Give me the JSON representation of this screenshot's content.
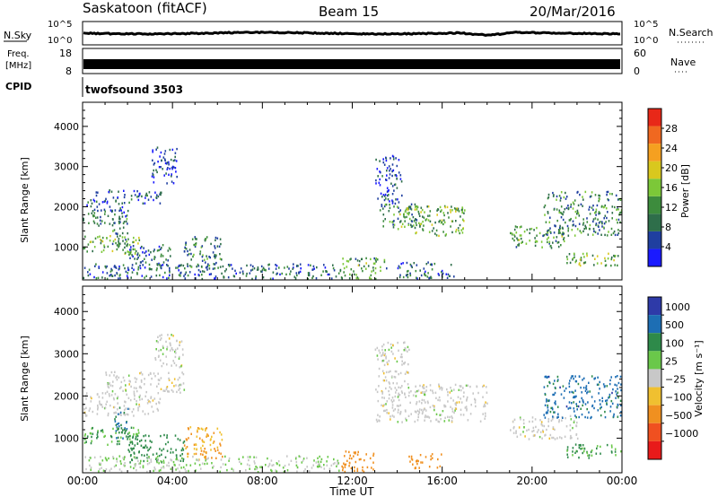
{
  "header": {
    "station": "Saskatoon (fitACF)",
    "beam": "Beam 15",
    "date": "20/Mar/2016"
  },
  "summary": {
    "nsky_label": "N.Sky",
    "nsky_ticks": [
      "10^5",
      "10^0"
    ],
    "nsearch_label": "N.Search",
    "freq_label_1": "Freq.",
    "freq_label_2": "[MHz]",
    "freq_ticks": [
      "18",
      "8"
    ],
    "nave_label": "Nave",
    "nave_ticks": [
      "60",
      "0"
    ],
    "cpid_label": "CPID",
    "cpid_value": "twofsound 3503"
  },
  "colors": {
    "power": [
      "#1a1aff",
      "#1f3fa0",
      "#2e6e4a",
      "#3d8c3d",
      "#7cc838",
      "#d9c81e",
      "#f5a020",
      "#f06820",
      "#e82818"
    ],
    "velocity": [
      "#2e3aa8",
      "#1d6eb4",
      "#2e8a4a",
      "#6ac84a",
      "#c8c8c8",
      "#f0c030",
      "#f09020",
      "#f05020",
      "#e81a1a"
    ]
  },
  "chart_data": [
    {
      "type": "heatmap",
      "panel": "power",
      "title": "",
      "xlabel": "Time UT",
      "ylabel": "Slant Range [km]",
      "xlim": [
        0,
        24
      ],
      "ylim": [
        180,
        4600
      ],
      "x_ticks": [
        "00:00",
        "04:00",
        "08:00",
        "12:00",
        "16:00",
        "20:00",
        "00:00"
      ],
      "y_ticks": [
        "1000",
        "2000",
        "3000",
        "4000"
      ],
      "colorbar_label": "Power [dB]",
      "colorbar_ticks": [
        "4",
        "8",
        "12",
        "16",
        "20",
        "24",
        "28"
      ],
      "colorbar_range": [
        0,
        32
      ],
      "echo_regions": [
        {
          "t0": 0.0,
          "t1": 2.0,
          "r0": 1550,
          "r1": 2100,
          "value": 8
        },
        {
          "t0": 0.2,
          "t1": 3.5,
          "r0": 2100,
          "r1": 2450,
          "value": 6
        },
        {
          "t0": 1.3,
          "t1": 2.0,
          "r0": 1000,
          "r1": 1750,
          "value": 10
        },
        {
          "t0": 0.0,
          "t1": 2.5,
          "r0": 850,
          "r1": 1300,
          "value": 14
        },
        {
          "t0": 2.0,
          "t1": 4.0,
          "r0": 450,
          "r1": 1100,
          "value": 8
        },
        {
          "t0": 3.0,
          "t1": 4.2,
          "r0": 2600,
          "r1": 3500,
          "value": 5
        },
        {
          "t0": 4.5,
          "t1": 6.2,
          "r0": 500,
          "r1": 1300,
          "value": 10
        },
        {
          "t0": 0.0,
          "t1": 11.5,
          "r0": 200,
          "r1": 600,
          "value": 8
        },
        {
          "t0": 11.5,
          "t1": 13.5,
          "r0": 200,
          "r1": 750,
          "value": 12
        },
        {
          "t0": 13.2,
          "t1": 15.0,
          "r0": 1500,
          "r1": 2100,
          "value": 10
        },
        {
          "t0": 14.0,
          "t1": 17.0,
          "r0": 1300,
          "r1": 2050,
          "value": 14
        },
        {
          "t0": 13.0,
          "t1": 14.2,
          "r0": 2100,
          "r1": 3300,
          "value": 5
        },
        {
          "t0": 14.0,
          "t1": 16.5,
          "r0": 200,
          "r1": 650,
          "value": 8
        },
        {
          "t0": 19.0,
          "t1": 21.5,
          "r0": 1000,
          "r1": 1550,
          "value": 12
        },
        {
          "t0": 20.5,
          "t1": 24.0,
          "r0": 1300,
          "r1": 2400,
          "value": 10
        },
        {
          "t0": 21.5,
          "t1": 24.0,
          "r0": 550,
          "r1": 900,
          "value": 14
        }
      ]
    },
    {
      "type": "heatmap",
      "panel": "velocity",
      "title": "",
      "xlabel": "Time UT",
      "ylabel": "Slant Range [km]",
      "xlim": [
        0,
        24
      ],
      "ylim": [
        180,
        4600
      ],
      "x_ticks": [
        "00:00",
        "04:00",
        "08:00",
        "12:00",
        "16:00",
        "20:00",
        "00:00"
      ],
      "y_ticks": [
        "1000",
        "2000",
        "3000",
        "4000"
      ],
      "colorbar_label": "Velocity [m s⁻¹]",
      "colorbar_ticks": [
        "1000",
        "500",
        "100",
        "25",
        "−25",
        "−100",
        "−500",
        "−1000"
      ],
      "echo_regions": [
        {
          "t0": 0.0,
          "t1": 3.5,
          "r0": 1550,
          "r1": 2100,
          "value": 0
        },
        {
          "t0": 1.0,
          "t1": 4.5,
          "r0": 2100,
          "r1": 2600,
          "value": 0
        },
        {
          "t0": 3.2,
          "t1": 4.5,
          "r0": 2700,
          "r1": 3500,
          "value": 0
        },
        {
          "t0": 1.4,
          "t1": 2.0,
          "r0": 1000,
          "r1": 1800,
          "value": 500
        },
        {
          "t0": 0.0,
          "t1": 2.5,
          "r0": 850,
          "r1": 1300,
          "value": 100
        },
        {
          "t0": 2.0,
          "t1": 4.5,
          "r0": 450,
          "r1": 1100,
          "value": 200
        },
        {
          "t0": 4.5,
          "t1": 6.2,
          "r0": 500,
          "r1": 1300,
          "value": -100
        },
        {
          "t0": 0.0,
          "t1": 11.5,
          "r0": 200,
          "r1": 600,
          "value": 25
        },
        {
          "t0": 11.5,
          "t1": 13.0,
          "r0": 200,
          "r1": 750,
          "value": -200
        },
        {
          "t0": 14.5,
          "t1": 16.0,
          "r0": 300,
          "r1": 650,
          "value": -200
        },
        {
          "t0": 13.0,
          "t1": 18.0,
          "r0": 1400,
          "r1": 2300,
          "value": 0
        },
        {
          "t0": 13.0,
          "t1": 14.5,
          "r0": 2300,
          "r1": 3300,
          "value": 0
        },
        {
          "t0": 19.0,
          "t1": 22.0,
          "r0": 1000,
          "r1": 1550,
          "value": 0
        },
        {
          "t0": 20.5,
          "t1": 24.0,
          "r0": 1500,
          "r1": 2500,
          "value": 700
        },
        {
          "t0": 21.5,
          "t1": 24.0,
          "r0": 550,
          "r1": 900,
          "value": 100
        }
      ]
    }
  ]
}
